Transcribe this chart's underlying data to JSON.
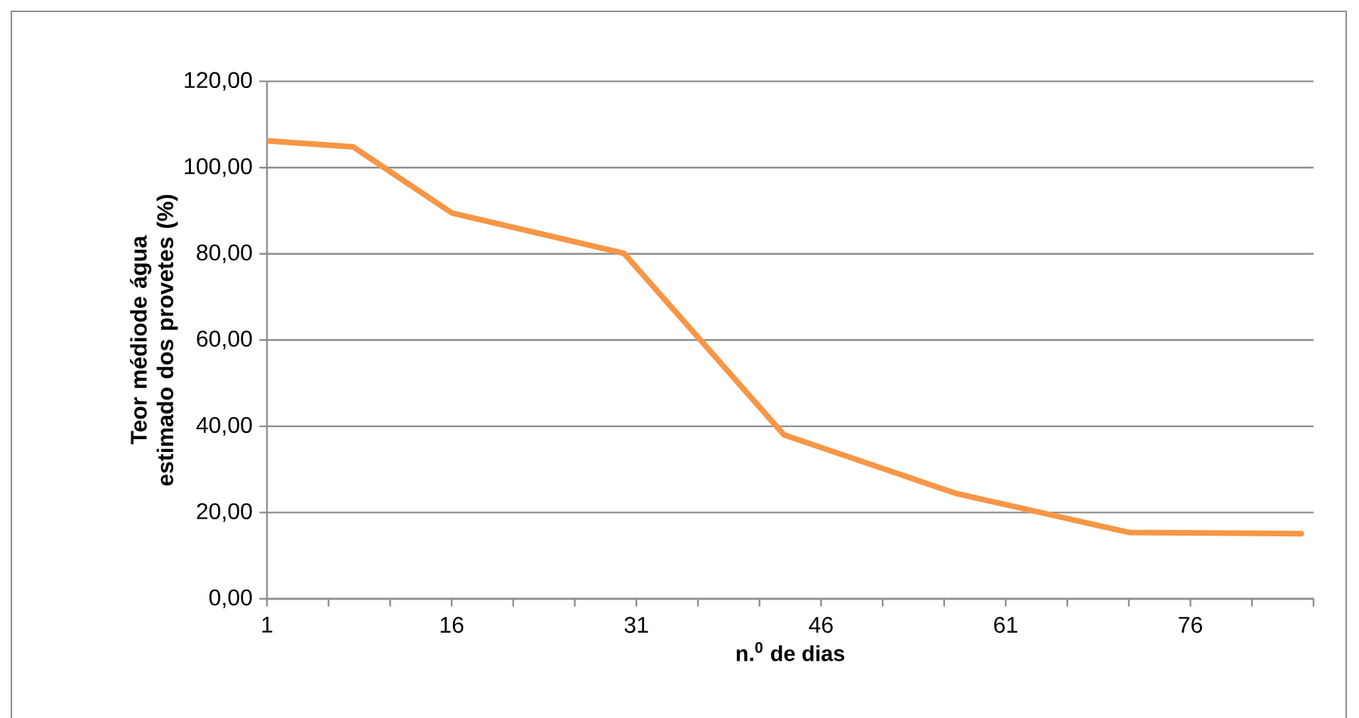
{
  "chart_data": {
    "type": "line",
    "xlabel": "n.$^{0}$ de dias",
    "ylabel": "Teor médiode água estimado dos provetes (%)",
    "x": [
      1,
      8,
      16,
      30,
      43,
      57,
      71,
      85
    ],
    "series": [
      {
        "color": "#f79646",
        "values": [
          106.2,
          104.8,
          89.5,
          80.1,
          38.0,
          24.4,
          15.4,
          15.1
        ]
      }
    ],
    "xlim": [
      1,
      86
    ],
    "xticks": [
      1,
      {
        "value": 6,
        "label": null
      },
      {
        "value": 11,
        "label": null
      },
      16,
      {
        "value": 21,
        "label": null
      },
      {
        "value": 26,
        "label": null
      },
      31,
      {
        "value": 36,
        "label": null
      },
      {
        "value": 41,
        "label": null
      },
      46,
      {
        "value": 51,
        "label": null
      },
      {
        "value": 56,
        "label": null
      },
      61,
      {
        "value": 66,
        "label": null
      },
      {
        "value": 71,
        "label": null
      },
      76,
      {
        "value": 81,
        "label": null
      },
      {
        "value": 86,
        "label": null
      }
    ],
    "ylim": [
      0,
      120
    ],
    "yticks": [
      {
        "value": 0,
        "label": "0,00"
      },
      {
        "value": 20,
        "label": "20,00"
      },
      {
        "value": 40,
        "label": "40,00"
      },
      {
        "value": 60,
        "label": "60,00"
      },
      {
        "value": 80,
        "label": "80,00"
      },
      {
        "value": 100,
        "label": "100,00"
      },
      {
        "value": 120,
        "label": "120,00"
      }
    ],
    "grid": "y",
    "marker": "none",
    "line_style": "solid"
  }
}
